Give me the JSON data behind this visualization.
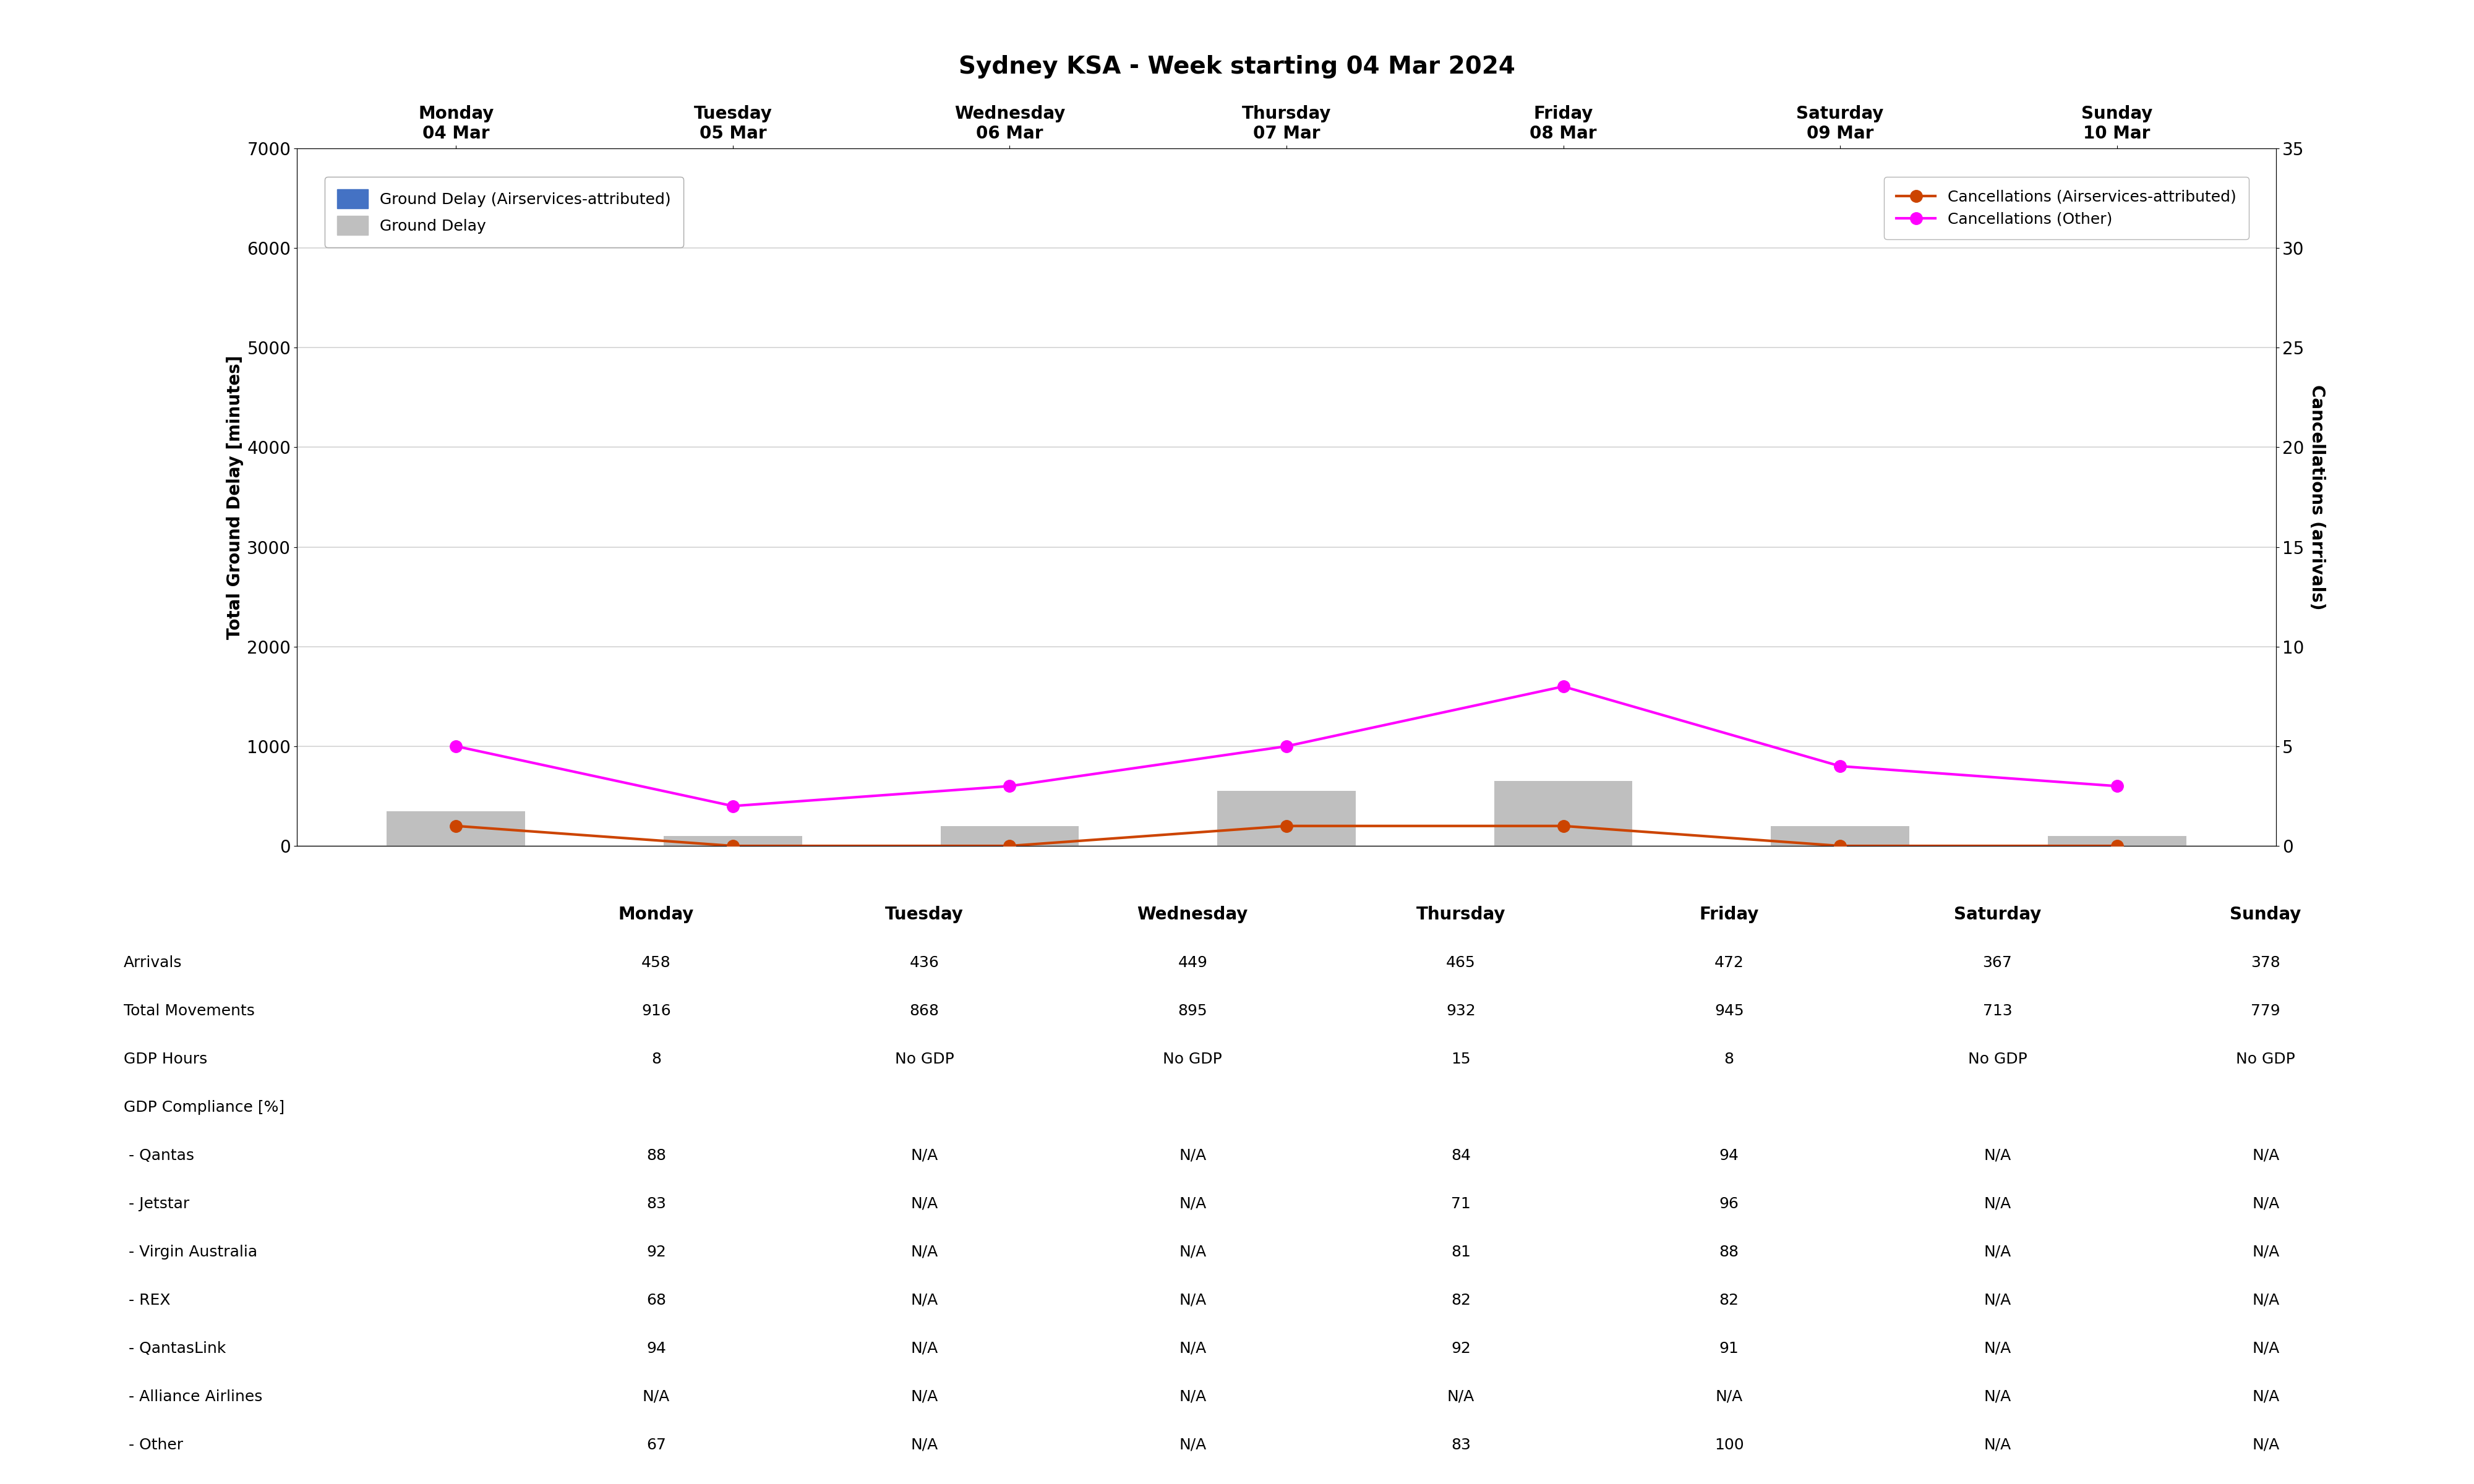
{
  "title": "Sydney KSA - Week starting 04 Mar 2024",
  "days": [
    "Monday\n04 Mar",
    "Tuesday\n05 Mar",
    "Wednesday\n06 Mar",
    "Thursday\n07 Mar",
    "Friday\n08 Mar",
    "Saturday\n09 Mar",
    "Sunday\n10 Mar"
  ],
  "ground_delay_airservices": [
    0,
    0,
    0,
    0,
    0,
    0,
    0
  ],
  "ground_delay_total": [
    350,
    100,
    200,
    550,
    650,
    200,
    100
  ],
  "cancellations_airservices": [
    1,
    0,
    0,
    1,
    1,
    0,
    0
  ],
  "cancellations_other": [
    5,
    2,
    3,
    5,
    8,
    4,
    3
  ],
  "ylim_left": [
    0,
    7000
  ],
  "ylim_right": [
    0,
    35
  ],
  "yticks_left": [
    0,
    1000,
    2000,
    3000,
    4000,
    5000,
    6000,
    7000
  ],
  "yticks_right": [
    0,
    5,
    10,
    15,
    20,
    25,
    30,
    35
  ],
  "ylabel_left": "Total Ground Delay [minutes]",
  "ylabel_right": "Cancellations (arrivals)",
  "bar_color_airservices": "#4472C4",
  "bar_color_total": "#BFBFBF",
  "line_color_airservices": "#CC4400",
  "line_color_other": "#FF00FF",
  "legend1_labels": [
    "Ground Delay (Airservices-attributed)",
    "Ground Delay"
  ],
  "legend2_labels": [
    "Cancellations (Airservices-attributed)",
    "Cancellations (Other)"
  ],
  "table_headers": [
    "",
    "Monday",
    "Tuesday",
    "Wednesday",
    "Thursday",
    "Friday",
    "Saturday",
    "Sunday"
  ],
  "table_rows": [
    [
      "Arrivals",
      "458",
      "436",
      "449",
      "465",
      "472",
      "367",
      "378"
    ],
    [
      "Total Movements",
      "916",
      "868",
      "895",
      "932",
      "945",
      "713",
      "779"
    ],
    [
      "GDP Hours",
      "8",
      "No GDP",
      "No GDP",
      "15",
      "8",
      "No GDP",
      "No GDP"
    ],
    [
      "GDP Compliance [%]",
      "",
      "",
      "",
      "",
      "",
      "",
      ""
    ],
    [
      " - Qantas",
      "88",
      "N/A",
      "N/A",
      "84",
      "94",
      "N/A",
      "N/A"
    ],
    [
      " - Jetstar",
      "83",
      "N/A",
      "N/A",
      "71",
      "96",
      "N/A",
      "N/A"
    ],
    [
      " - Virgin Australia",
      "92",
      "N/A",
      "N/A",
      "81",
      "88",
      "N/A",
      "N/A"
    ],
    [
      " - REX",
      "68",
      "N/A",
      "N/A",
      "82",
      "82",
      "N/A",
      "N/A"
    ],
    [
      " - QantasLink",
      "94",
      "N/A",
      "N/A",
      "92",
      "91",
      "N/A",
      "N/A"
    ],
    [
      " - Alliance Airlines",
      "N/A",
      "N/A",
      "N/A",
      "N/A",
      "N/A",
      "N/A",
      "N/A"
    ],
    [
      " - Other",
      "67",
      "N/A",
      "N/A",
      "83",
      "100",
      "N/A",
      "N/A"
    ]
  ],
  "title_fontsize": 28,
  "axis_label_fontsize": 20,
  "tick_fontsize": 20,
  "legend_fontsize": 18,
  "table_header_fontsize": 20,
  "table_data_fontsize": 18
}
